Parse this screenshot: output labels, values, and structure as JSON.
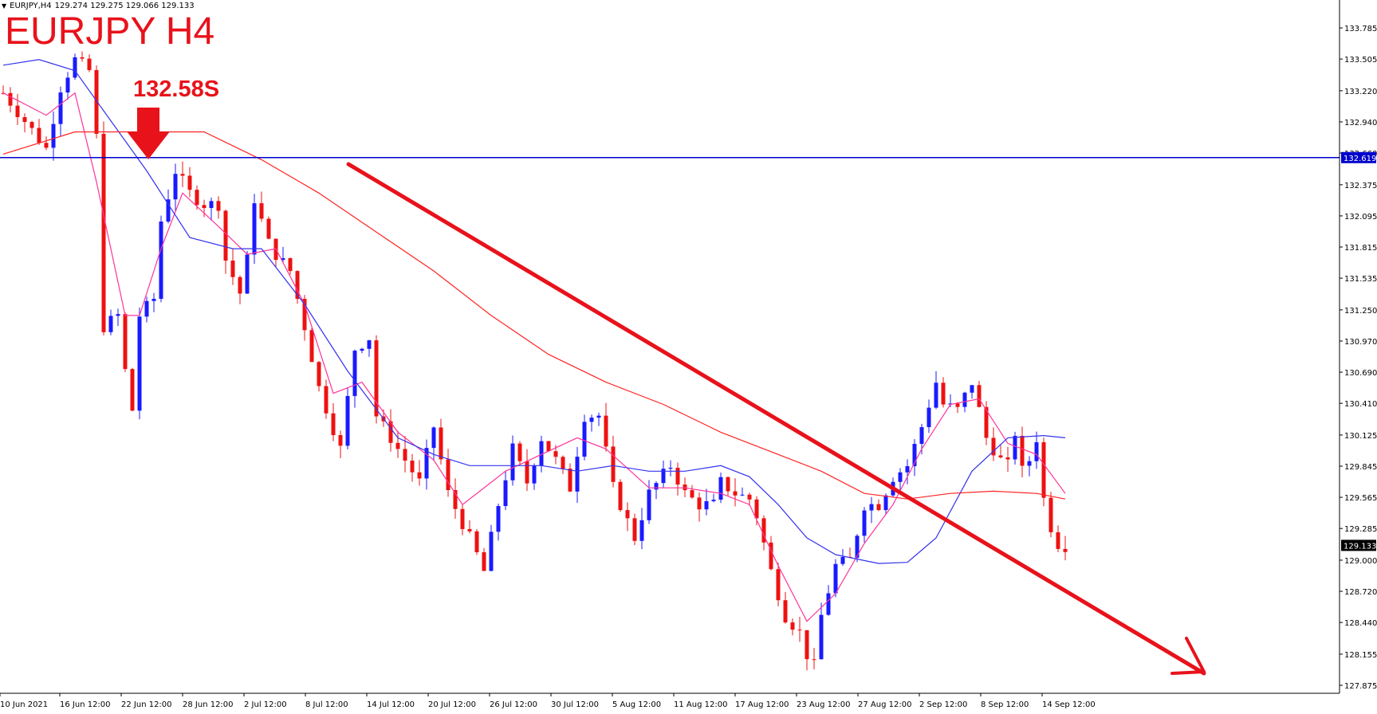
{
  "header": {
    "symbol_label": "EURJPY,H4",
    "ohlc": "129.274 129.275 129.066 129.133"
  },
  "annotations": {
    "title": "EURJPY H4",
    "level_label": "132.58S"
  },
  "colors": {
    "candle_up": "#1a1aff",
    "candle_down": "#ee1111",
    "ma_fast": "#ff3399",
    "ma_mid": "#3333ee",
    "ma_slow": "#ff2222",
    "level_line": "#0000cc",
    "arrow": "#e8121b",
    "price_tag_bg": "#0000cc",
    "current_tag_bg": "#000000"
  },
  "chart_data": {
    "type": "candlestick",
    "symbol": "EURJPY",
    "timeframe": "H4",
    "x_tick_labels": [
      "10 Jun 2021",
      "16 Jun 12:00",
      "22 Jun 12:00",
      "28 Jun 12:00",
      "2 Jul 12:00",
      "8 Jul 12:00",
      "14 Jul 12:00",
      "20 Jul 12:00",
      "26 Jul 12:00",
      "30 Jul 12:00",
      "5 Aug 12:00",
      "11 Aug 12:00",
      "17 Aug 12:00",
      "23 Aug 12:00",
      "27 Aug 12:00",
      "2 Sep 12:00",
      "8 Sep 12:00",
      "14 Sep 12:00"
    ],
    "y_tick_labels": [
      "133.785",
      "133.505",
      "133.220",
      "132.940",
      "132.660",
      "132.375",
      "132.095",
      "131.815",
      "131.535",
      "131.250",
      "130.970",
      "130.690",
      "130.410",
      "130.125",
      "129.845",
      "129.565",
      "129.285",
      "129.000",
      "128.720",
      "128.440",
      "128.155",
      "127.875"
    ],
    "y_range": [
      127.875,
      133.785
    ],
    "horizontal_level": 132.619,
    "horizontal_level_label": "132.619",
    "current_price": 129.133,
    "current_price_label": "129.133",
    "close_path": [
      [
        0,
        133.2
      ],
      [
        3,
        132.95
      ],
      [
        6,
        132.7
      ],
      [
        8,
        133.25
      ],
      [
        10,
        133.5
      ],
      [
        12,
        133.4
      ],
      [
        13,
        132.8
      ],
      [
        14,
        131.1
      ],
      [
        16,
        131.2
      ],
      [
        17,
        130.7
      ],
      [
        18,
        130.35
      ],
      [
        19,
        131.2
      ],
      [
        21,
        131.35
      ],
      [
        22,
        132.05
      ],
      [
        24,
        132.5
      ],
      [
        26,
        132.3
      ],
      [
        28,
        132.2
      ],
      [
        30,
        132.2
      ],
      [
        31,
        131.7
      ],
      [
        32,
        131.55
      ],
      [
        33,
        131.4
      ],
      [
        34,
        131.7
      ],
      [
        35,
        132.25
      ],
      [
        37,
        131.85
      ],
      [
        38,
        131.75
      ],
      [
        40,
        131.6
      ],
      [
        42,
        131.1
      ],
      [
        44,
        130.55
      ],
      [
        47,
        130.0
      ],
      [
        49,
        130.9
      ],
      [
        51,
        131.0
      ],
      [
        52,
        130.3
      ],
      [
        54,
        130.1
      ],
      [
        56,
        129.9
      ],
      [
        58,
        129.7
      ],
      [
        60,
        130.2
      ],
      [
        62,
        129.6
      ],
      [
        65,
        129.2
      ],
      [
        67,
        128.9
      ],
      [
        69,
        129.5
      ],
      [
        71,
        130.0
      ],
      [
        73,
        129.7
      ],
      [
        75,
        130.1
      ],
      [
        77,
        129.9
      ],
      [
        79,
        129.65
      ],
      [
        81,
        130.3
      ],
      [
        83,
        130.3
      ],
      [
        85,
        129.65
      ],
      [
        86,
        129.5
      ],
      [
        88,
        129.2
      ],
      [
        90,
        129.6
      ],
      [
        93,
        129.85
      ],
      [
        95,
        129.6
      ],
      [
        97,
        129.5
      ],
      [
        99,
        129.5
      ],
      [
        100,
        129.7
      ],
      [
        102,
        129.6
      ],
      [
        104,
        129.55
      ],
      [
        105,
        129.4
      ],
      [
        107,
        128.9
      ],
      [
        109,
        128.5
      ],
      [
        111,
        128.35
      ],
      [
        112,
        128.15
      ],
      [
        113,
        128.05
      ],
      [
        114,
        128.5
      ],
      [
        116,
        128.95
      ],
      [
        118,
        129.0
      ],
      [
        120,
        129.5
      ],
      [
        122,
        129.5
      ],
      [
        124,
        129.75
      ],
      [
        126,
        129.85
      ],
      [
        128,
        130.2
      ],
      [
        130,
        130.6
      ],
      [
        131,
        130.4
      ],
      [
        133,
        130.35
      ],
      [
        135,
        130.6
      ],
      [
        137,
        130.1
      ],
      [
        139,
        129.9
      ],
      [
        140,
        129.85
      ],
      [
        141,
        130.15
      ],
      [
        142,
        129.8
      ],
      [
        143,
        129.9
      ],
      [
        144,
        130.1
      ],
      [
        145,
        129.55
      ],
      [
        146,
        129.3
      ],
      [
        147,
        129.15
      ],
      [
        148,
        129.133
      ]
    ],
    "moving_averages": [
      {
        "color": "#ff3399",
        "values": [
          [
            0,
            133.2
          ],
          [
            6,
            133.0
          ],
          [
            10,
            133.2
          ],
          [
            13,
            132.4
          ],
          [
            17,
            131.2
          ],
          [
            19,
            131.2
          ],
          [
            22,
            131.8
          ],
          [
            25,
            132.3
          ],
          [
            30,
            132.0
          ],
          [
            34,
            131.75
          ],
          [
            38,
            131.8
          ],
          [
            42,
            131.3
          ],
          [
            46,
            130.5
          ],
          [
            50,
            130.6
          ],
          [
            55,
            130.15
          ],
          [
            60,
            129.9
          ],
          [
            64,
            129.5
          ],
          [
            70,
            129.8
          ],
          [
            75,
            129.95
          ],
          [
            80,
            130.1
          ],
          [
            84,
            130.0
          ],
          [
            90,
            129.65
          ],
          [
            95,
            129.65
          ],
          [
            100,
            129.6
          ],
          [
            104,
            129.5
          ],
          [
            108,
            128.95
          ],
          [
            112,
            128.45
          ],
          [
            116,
            128.7
          ],
          [
            120,
            129.15
          ],
          [
            124,
            129.5
          ],
          [
            128,
            130.0
          ],
          [
            132,
            130.4
          ],
          [
            136,
            130.45
          ],
          [
            140,
            130.05
          ],
          [
            144,
            129.95
          ],
          [
            148,
            129.6
          ]
        ]
      },
      {
        "color": "#3333ee",
        "values": [
          [
            0,
            133.45
          ],
          [
            5,
            133.5
          ],
          [
            10,
            133.4
          ],
          [
            15,
            132.95
          ],
          [
            20,
            132.5
          ],
          [
            26,
            131.9
          ],
          [
            32,
            131.8
          ],
          [
            36,
            131.8
          ],
          [
            42,
            131.3
          ],
          [
            48,
            130.7
          ],
          [
            55,
            130.1
          ],
          [
            60,
            129.95
          ],
          [
            65,
            129.85
          ],
          [
            70,
            129.85
          ],
          [
            75,
            129.85
          ],
          [
            80,
            129.8
          ],
          [
            85,
            129.85
          ],
          [
            90,
            129.8
          ],
          [
            95,
            129.8
          ],
          [
            100,
            129.85
          ],
          [
            104,
            129.75
          ],
          [
            108,
            129.5
          ],
          [
            112,
            129.2
          ],
          [
            116,
            129.05
          ],
          [
            122,
            128.97
          ],
          [
            126,
            128.98
          ],
          [
            130,
            129.2
          ],
          [
            135,
            129.8
          ],
          [
            140,
            130.1
          ],
          [
            145,
            130.12
          ],
          [
            148,
            130.1
          ]
        ]
      },
      {
        "color": "#ff2222",
        "values": [
          [
            0,
            132.65
          ],
          [
            10,
            132.85
          ],
          [
            20,
            132.85
          ],
          [
            28,
            132.85
          ],
          [
            36,
            132.6
          ],
          [
            44,
            132.3
          ],
          [
            52,
            131.95
          ],
          [
            60,
            131.6
          ],
          [
            68,
            131.2
          ],
          [
            76,
            130.85
          ],
          [
            84,
            130.6
          ],
          [
            92,
            130.4
          ],
          [
            100,
            130.15
          ],
          [
            108,
            129.95
          ],
          [
            114,
            129.8
          ],
          [
            120,
            129.6
          ],
          [
            126,
            129.55
          ],
          [
            132,
            129.6
          ],
          [
            138,
            129.62
          ],
          [
            144,
            129.6
          ],
          [
            148,
            129.55
          ]
        ]
      }
    ]
  }
}
